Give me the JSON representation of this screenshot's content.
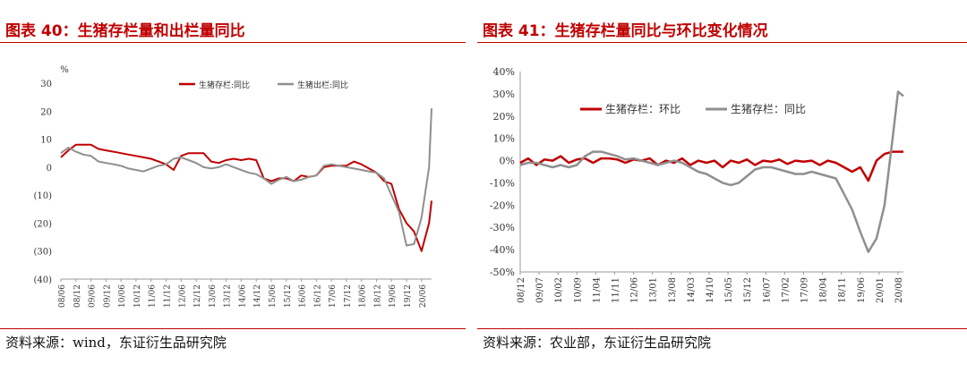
{
  "left_panel": {
    "title": "图表 40：生猪存栏量和出栏量同比",
    "source": "资料来源：wind，东证衍生品研究院"
  },
  "right_panel": {
    "title": "图表 41：生猪存栏量同比与环比变化情况",
    "source": "资料来源：农业部，东证衍生品研究院"
  },
  "colors": {
    "red": "#c00000",
    "gray": "#8f8f8f",
    "accent": "#c00000"
  },
  "chart_data": [
    {
      "type": "line",
      "ylabel": "%",
      "ylim": [
        -40,
        30
      ],
      "yticks": [
        30,
        20,
        10,
        0,
        -10,
        -20,
        -30,
        -40
      ],
      "ytick_labels": [
        "30",
        "20",
        "10",
        "0",
        "(10)",
        "(20)",
        "(30)",
        "(40)"
      ],
      "x_start": "2008-06",
      "x_end": "2020-10",
      "xtick_labels": [
        "08/06",
        "08/12",
        "09/06",
        "09/12",
        "10/06",
        "10/12",
        "11/06",
        "11/12",
        "12/06",
        "12/12",
        "13/06",
        "13/12",
        "14/06",
        "14/12",
        "15/06",
        "15/12",
        "16/06",
        "16/12",
        "17/06",
        "17/12",
        "18/06",
        "18/12",
        "19/06",
        "19/12",
        "20/06"
      ],
      "legend_position": "top-right",
      "series": [
        {
          "name": "生猪存栏:同比",
          "color": "#c00000",
          "points": [
            [
              "2008-06",
              3.5
            ],
            [
              "2008-09",
              6
            ],
            [
              "2008-12",
              8
            ],
            [
              "2009-03",
              8
            ],
            [
              "2009-06",
              8
            ],
            [
              "2009-09",
              6.5
            ],
            [
              "2009-12",
              6
            ],
            [
              "2010-03",
              5.5
            ],
            [
              "2010-06",
              5
            ],
            [
              "2010-09",
              4.5
            ],
            [
              "2010-12",
              4
            ],
            [
              "2011-03",
              3.5
            ],
            [
              "2011-06",
              3
            ],
            [
              "2011-09",
              2
            ],
            [
              "2011-12",
              1
            ],
            [
              "2012-03",
              -1
            ],
            [
              "2012-06",
              4
            ],
            [
              "2012-09",
              5
            ],
            [
              "2012-12",
              5
            ],
            [
              "2013-03",
              5
            ],
            [
              "2013-06",
              2
            ],
            [
              "2013-09",
              1.5
            ],
            [
              "2013-12",
              2.5
            ],
            [
              "2014-03",
              3
            ],
            [
              "2014-06",
              2.5
            ],
            [
              "2014-09",
              3
            ],
            [
              "2014-12",
              2.5
            ],
            [
              "2015-03",
              -4
            ],
            [
              "2015-06",
              -5
            ],
            [
              "2015-09",
              -4
            ],
            [
              "2015-12",
              -4
            ],
            [
              "2016-03",
              -5
            ],
            [
              "2016-06",
              -3
            ],
            [
              "2016-09",
              -3.5
            ],
            [
              "2016-12",
              -3
            ],
            [
              "2017-03",
              0
            ],
            [
              "2017-06",
              0.5
            ],
            [
              "2017-09",
              0.5
            ],
            [
              "2017-12",
              0.5
            ],
            [
              "2018-03",
              2
            ],
            [
              "2018-06",
              1
            ],
            [
              "2018-09",
              -0.5
            ],
            [
              "2018-12",
              -2
            ],
            [
              "2019-03",
              -5
            ],
            [
              "2019-06",
              -6
            ],
            [
              "2019-09",
              -15
            ],
            [
              "2019-12",
              -20
            ],
            [
              "2020-03",
              -23
            ],
            [
              "2020-06",
              -30
            ],
            [
              "2020-09",
              -20
            ],
            [
              "2020-10",
              -12
            ]
          ]
        },
        {
          "name": "生猪出栏:同比",
          "color": "#8f8f8f",
          "points": [
            [
              "2008-06",
              5
            ],
            [
              "2008-09",
              7
            ],
            [
              "2008-12",
              5.5
            ],
            [
              "2009-03",
              4.5
            ],
            [
              "2009-06",
              4
            ],
            [
              "2009-09",
              2
            ],
            [
              "2009-12",
              1.5
            ],
            [
              "2010-03",
              1
            ],
            [
              "2010-06",
              0.5
            ],
            [
              "2010-09",
              -0.5
            ],
            [
              "2010-12",
              -1
            ],
            [
              "2011-03",
              -1.5
            ],
            [
              "2011-06",
              -0.5
            ],
            [
              "2011-09",
              0.5
            ],
            [
              "2011-12",
              1
            ],
            [
              "2012-03",
              3
            ],
            [
              "2012-06",
              3.5
            ],
            [
              "2012-09",
              2.5
            ],
            [
              "2012-12",
              1.5
            ],
            [
              "2013-03",
              0
            ],
            [
              "2013-06",
              -0.5
            ],
            [
              "2013-09",
              0
            ],
            [
              "2013-12",
              1
            ],
            [
              "2014-03",
              0
            ],
            [
              "2014-06",
              -1
            ],
            [
              "2014-09",
              -2
            ],
            [
              "2014-12",
              -2.5
            ],
            [
              "2015-03",
              -4
            ],
            [
              "2015-06",
              -6
            ],
            [
              "2015-09",
              -4.5
            ],
            [
              "2015-12",
              -3.5
            ],
            [
              "2016-03",
              -5
            ],
            [
              "2016-06",
              -4.5
            ],
            [
              "2016-09",
              -3.5
            ],
            [
              "2016-12",
              -3
            ],
            [
              "2017-03",
              0.5
            ],
            [
              "2017-06",
              1
            ],
            [
              "2017-09",
              0.5
            ],
            [
              "2017-12",
              0
            ],
            [
              "2018-03",
              -0.5
            ],
            [
              "2018-06",
              -1
            ],
            [
              "2018-09",
              -1.5
            ],
            [
              "2018-12",
              -2
            ],
            [
              "2019-03",
              -4
            ],
            [
              "2019-06",
              -10
            ],
            [
              "2019-09",
              -16
            ],
            [
              "2019-12",
              -28
            ],
            [
              "2020-03",
              -27.5
            ],
            [
              "2020-06",
              -18
            ],
            [
              "2020-09",
              0
            ],
            [
              "2020-10",
              21
            ]
          ]
        }
      ]
    },
    {
      "type": "line",
      "ylim": [
        -50,
        40
      ],
      "yticks": [
        40,
        30,
        20,
        10,
        0,
        -10,
        -20,
        -30,
        -40,
        -50
      ],
      "ytick_labels": [
        "40%",
        "30%",
        "20%",
        "10%",
        "0%",
        "-10%",
        "-20%",
        "-30%",
        "-40%",
        "-50%"
      ],
      "x_start": "2008-12",
      "x_end": "2020-10",
      "xtick_labels": [
        "08/12",
        "09/07",
        "10/02",
        "10/09",
        "11/04",
        "11/11",
        "12/06",
        "13/01",
        "13/08",
        "14/03",
        "14/10",
        "15/05",
        "15/12",
        "16/07",
        "17/02",
        "17/09",
        "18/04",
        "18/11",
        "19/06",
        "20/01",
        "20/08"
      ],
      "legend_position": "top",
      "series": [
        {
          "name": "生猪存栏：环比",
          "color": "#c00000",
          "points": [
            [
              "2008-12",
              -1
            ],
            [
              "2009-03",
              1
            ],
            [
              "2009-06",
              -2
            ],
            [
              "2009-09",
              0.5
            ],
            [
              "2009-12",
              0
            ],
            [
              "2010-03",
              2
            ],
            [
              "2010-06",
              -1
            ],
            [
              "2010-09",
              0.5
            ],
            [
              "2010-12",
              1
            ],
            [
              "2011-03",
              -1
            ],
            [
              "2011-06",
              1
            ],
            [
              "2011-09",
              1
            ],
            [
              "2011-12",
              0.5
            ],
            [
              "2012-03",
              -1
            ],
            [
              "2012-06",
              0.5
            ],
            [
              "2012-09",
              0
            ],
            [
              "2012-12",
              1
            ],
            [
              "2013-03",
              -2
            ],
            [
              "2013-06",
              0
            ],
            [
              "2013-09",
              -1
            ],
            [
              "2013-12",
              1
            ],
            [
              "2014-03",
              -2
            ],
            [
              "2014-06",
              0
            ],
            [
              "2014-09",
              -1
            ],
            [
              "2014-12",
              0
            ],
            [
              "2015-03",
              -3
            ],
            [
              "2015-06",
              0
            ],
            [
              "2015-09",
              -1
            ],
            [
              "2015-12",
              0.5
            ],
            [
              "2016-03",
              -2
            ],
            [
              "2016-06",
              0
            ],
            [
              "2016-09",
              -0.5
            ],
            [
              "2016-12",
              0.5
            ],
            [
              "2017-03",
              -1.5
            ],
            [
              "2017-06",
              0
            ],
            [
              "2017-09",
              -0.5
            ],
            [
              "2017-12",
              0
            ],
            [
              "2018-03",
              -2
            ],
            [
              "2018-06",
              0
            ],
            [
              "2018-09",
              -1
            ],
            [
              "2018-12",
              -3
            ],
            [
              "2019-03",
              -5
            ],
            [
              "2019-06",
              -3
            ],
            [
              "2019-09",
              -9
            ],
            [
              "2019-12",
              0
            ],
            [
              "2020-03",
              3
            ],
            [
              "2020-06",
              4
            ],
            [
              "2020-10",
              4
            ]
          ]
        },
        {
          "name": "生猪存栏：同比",
          "color": "#8f8f8f",
          "points": [
            [
              "2008-12",
              -2
            ],
            [
              "2009-03",
              -1
            ],
            [
              "2009-06",
              -1
            ],
            [
              "2009-09",
              -2
            ],
            [
              "2009-12",
              -3
            ],
            [
              "2010-03",
              -2
            ],
            [
              "2010-06",
              -3
            ],
            [
              "2010-09",
              -2
            ],
            [
              "2010-12",
              2
            ],
            [
              "2011-03",
              4
            ],
            [
              "2011-06",
              4
            ],
            [
              "2011-09",
              3
            ],
            [
              "2011-12",
              2
            ],
            [
              "2012-03",
              0.5
            ],
            [
              "2012-06",
              1
            ],
            [
              "2012-09",
              0
            ],
            [
              "2012-12",
              -1
            ],
            [
              "2013-03",
              -2
            ],
            [
              "2013-06",
              -1
            ],
            [
              "2013-09",
              0
            ],
            [
              "2013-12",
              -1
            ],
            [
              "2014-03",
              -3
            ],
            [
              "2014-06",
              -5
            ],
            [
              "2014-09",
              -6
            ],
            [
              "2014-12",
              -8
            ],
            [
              "2015-03",
              -10
            ],
            [
              "2015-06",
              -11
            ],
            [
              "2015-09",
              -10
            ],
            [
              "2015-12",
              -7
            ],
            [
              "2016-03",
              -4
            ],
            [
              "2016-06",
              -3
            ],
            [
              "2016-09",
              -3
            ],
            [
              "2016-12",
              -4
            ],
            [
              "2017-03",
              -5
            ],
            [
              "2017-06",
              -6
            ],
            [
              "2017-09",
              -6
            ],
            [
              "2017-12",
              -5
            ],
            [
              "2018-03",
              -6
            ],
            [
              "2018-06",
              -7
            ],
            [
              "2018-09",
              -8
            ],
            [
              "2018-12",
              -15
            ],
            [
              "2019-03",
              -22
            ],
            [
              "2019-06",
              -32
            ],
            [
              "2019-09",
              -41
            ],
            [
              "2019-12",
              -35
            ],
            [
              "2020-03",
              -20
            ],
            [
              "2020-06",
              10
            ],
            [
              "2020-08",
              31
            ],
            [
              "2020-10",
              29
            ]
          ]
        }
      ]
    }
  ]
}
